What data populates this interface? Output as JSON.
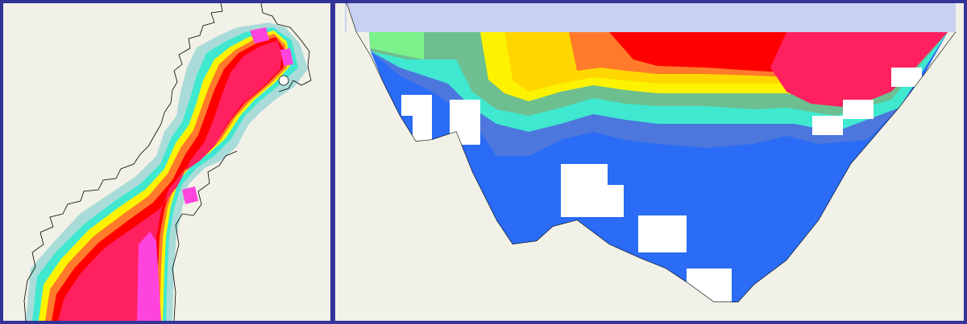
{
  "views": {
    "map": {
      "kind": "horizontal-field-map",
      "interactable": true
    },
    "section": {
      "kind": "vertical-cross-section",
      "interactable": true
    }
  },
  "colors": {
    "frame": "#333399",
    "land": "#f2f1e8",
    "surface": "#c8d1f2",
    "coast": "#000000",
    "no_data": "#ffffff",
    "scale": [
      "#2a6cf5",
      "#4d77dc",
      "#3fb0e8",
      "#40e8d0",
      "#6dbf8f",
      "#7cf28a",
      "#f5f27a",
      "#fdf300",
      "#ffd700",
      "#ffb400",
      "#ff7a2a",
      "#ff5018",
      "#ff0000",
      "#ff2060",
      "#ff3399",
      "#ff44dd"
    ]
  }
}
